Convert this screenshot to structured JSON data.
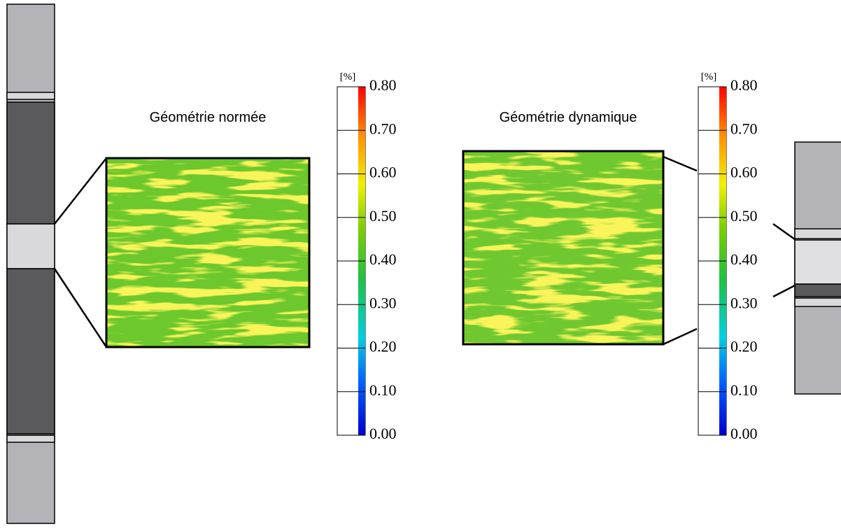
{
  "panels": [
    {
      "title": "Géométrie normée",
      "unit": "[%]",
      "range": [
        0,
        0.8
      ],
      "ticks": [
        {
          "value": 0,
          "label": "0.00"
        },
        {
          "value": 0.1,
          "label": "0.10"
        },
        {
          "value": 0.2,
          "label": "0.20"
        },
        {
          "value": 0.3,
          "label": "0.30"
        },
        {
          "value": 0.4,
          "label": "0.40"
        },
        {
          "value": 0.5,
          "label": "0.50"
        },
        {
          "value": 0.6,
          "label": "0.60"
        },
        {
          "value": 0.7,
          "label": "0.70"
        },
        {
          "value": 0.8,
          "label": "0.80"
        }
      ]
    },
    {
      "title": "Géométrie dynamique",
      "unit": "[%]",
      "range": [
        0,
        0.8
      ],
      "ticks": [
        {
          "value": 0,
          "label": "0.00"
        },
        {
          "value": 0.1,
          "label": "0.10"
        },
        {
          "value": 0.2,
          "label": "0.20"
        },
        {
          "value": 0.3,
          "label": "0.30"
        },
        {
          "value": 0.4,
          "label": "0.40"
        },
        {
          "value": 0.5,
          "label": "0.50"
        },
        {
          "value": 0.6,
          "label": "0.60"
        },
        {
          "value": 0.7,
          "label": "0.70"
        },
        {
          "value": 0.8,
          "label": "0.80"
        }
      ]
    }
  ]
}
